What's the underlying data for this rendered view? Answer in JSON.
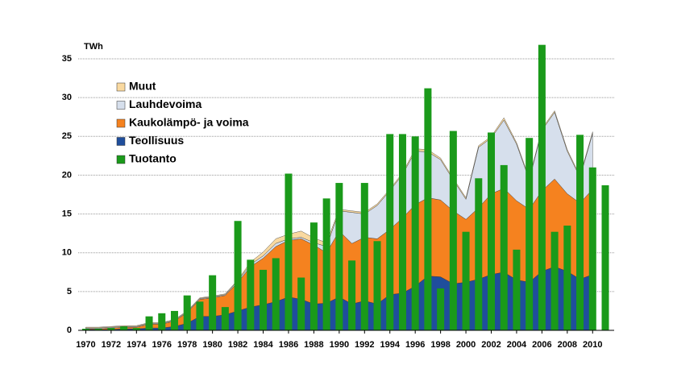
{
  "chart_data": {
    "type": "combo",
    "y_label": "TWh",
    "x": [
      1970,
      1971,
      1972,
      1973,
      1974,
      1975,
      1976,
      1977,
      1978,
      1979,
      1980,
      1981,
      1982,
      1983,
      1984,
      1985,
      1986,
      1987,
      1988,
      1989,
      1990,
      1991,
      1992,
      1993,
      1994,
      1995,
      1996,
      1997,
      1998,
      1999,
      2000,
      2001,
      2002,
      2003,
      2004,
      2005,
      2006,
      2007,
      2008,
      2009,
      2010,
      2011
    ],
    "xlim": [
      1969.4,
      2011.7
    ],
    "xticks": [
      1970,
      1972,
      1974,
      1976,
      1978,
      1980,
      1982,
      1984,
      1986,
      1988,
      1990,
      1992,
      1994,
      1996,
      1998,
      2000,
      2002,
      2004,
      2006,
      2008,
      2010
    ],
    "ylim": [
      0,
      35
    ],
    "yticks": [
      0,
      5,
      10,
      15,
      20,
      25,
      30,
      35
    ],
    "grid": true,
    "series": [
      {
        "name": "Muut",
        "type": "area",
        "color": "#f9d9a0",
        "values": [
          0.1,
          0.1,
          0.1,
          0.1,
          0.1,
          0.1,
          0.1,
          0.1,
          0.1,
          0.1,
          0.1,
          0.1,
          0.1,
          0.3,
          0.5,
          0.6,
          0.6,
          0.8,
          0.6,
          0.5,
          0.2,
          0.2,
          0.2,
          0.2,
          0.2,
          0.2,
          0.3,
          0.3,
          0.2,
          0.2,
          0.2,
          0.2,
          0.2,
          0.3,
          0.2,
          0.2,
          0.2,
          0.2,
          0.2,
          0.2,
          0.2,
          null
        ]
      },
      {
        "name": "Lauhdevoima",
        "type": "area",
        "color": "#d6dfec",
        "values": [
          0.1,
          0.1,
          0.1,
          0.1,
          0.1,
          0.1,
          0.1,
          0.1,
          0.1,
          0.1,
          0.1,
          0.1,
          0.2,
          0.3,
          0.3,
          0.4,
          0.2,
          0.2,
          0.3,
          0.8,
          2.6,
          4.0,
          3.0,
          4.3,
          5.0,
          5.6,
          6.9,
          5.9,
          5.2,
          4.0,
          2.6,
          7.8,
          7.2,
          8.8,
          7.3,
          3.8,
          7.8,
          8.6,
          5.5,
          3.3,
          7.2,
          null
        ]
      },
      {
        "name": "Kaukolämpö- ja voima",
        "type": "area",
        "color": "#f5821f",
        "values": [
          0.1,
          0.1,
          0.2,
          0.2,
          0.2,
          0.5,
          0.5,
          0.7,
          1.4,
          2.2,
          2.4,
          2.5,
          3.7,
          5.2,
          6.0,
          7.1,
          7.3,
          7.8,
          7.6,
          6.5,
          8.5,
          7.8,
          8.2,
          8.4,
          8.4,
          9.7,
          10.5,
          10.1,
          9.9,
          9.4,
          8.1,
          9.2,
          10.4,
          10.8,
          10.2,
          9.4,
          10.4,
          11.3,
          10.0,
          9.8,
          11.0,
          null
        ]
      },
      {
        "name": "Teollisuus",
        "type": "area",
        "color": "#1f4e9c",
        "values": [
          0.1,
          0.1,
          0.1,
          0.2,
          0.2,
          0.3,
          0.3,
          0.5,
          0.9,
          1.8,
          1.8,
          2.0,
          2.5,
          3.0,
          3.3,
          3.7,
          4.3,
          4.0,
          3.4,
          3.5,
          4.3,
          3.4,
          3.8,
          3.4,
          4.6,
          4.8,
          5.7,
          7.0,
          6.9,
          6.0,
          6.2,
          6.6,
          7.2,
          7.5,
          6.5,
          6.2,
          7.6,
          8.2,
          7.6,
          6.6,
          7.2,
          null
        ]
      },
      {
        "name": "Tuotanto",
        "type": "bar",
        "color": "#1a9a1a",
        "values": [
          0.2,
          0.2,
          0.3,
          0.5,
          0.3,
          1.8,
          2.2,
          2.5,
          4.5,
          3.7,
          7.1,
          3.0,
          14.1,
          9.1,
          7.8,
          9.3,
          20.2,
          6.8,
          13.9,
          17.0,
          19.0,
          9.0,
          19.0,
          11.5,
          25.3,
          25.3,
          25.0,
          31.2,
          5.4,
          25.7,
          12.7,
          19.6,
          25.5,
          21.3,
          10.4,
          24.8,
          36.8,
          12.7,
          13.5,
          25.2,
          21.0,
          18.7
        ]
      }
    ]
  }
}
